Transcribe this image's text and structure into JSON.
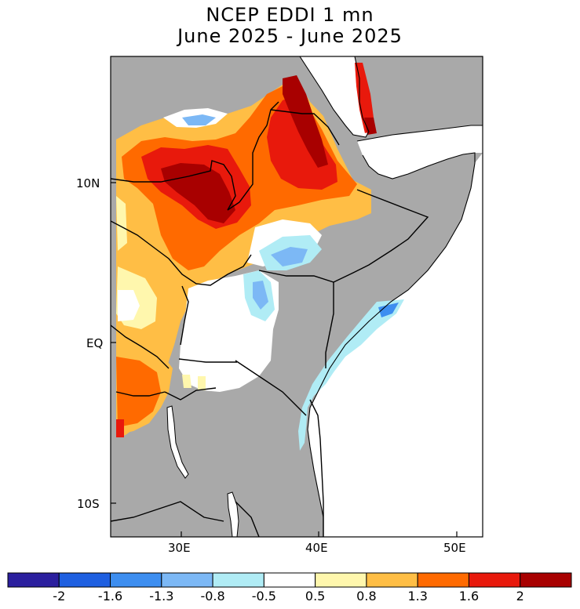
{
  "title": {
    "line1": "NCEP EDDI 1 mn",
    "line2": "June 2025 - June 2025"
  },
  "map": {
    "region": "East Africa",
    "lon_ticks": [
      "30E",
      "40E",
      "50E"
    ],
    "lat_ticks": [
      "10N",
      "EQ",
      "10S"
    ],
    "land_no_data_color": "#a9a9a9",
    "water_color": "#ffffff"
  },
  "colorbar": {
    "labels": [
      "-2",
      "-1.6",
      "-1.3",
      "-0.8",
      "-0.5",
      "0.5",
      "0.8",
      "1.3",
      "1.6",
      "2"
    ],
    "colors": [
      "#2b1f9e",
      "#1e5fe0",
      "#3d8ef0",
      "#7cb8f5",
      "#b0ecf5",
      "#ffffff",
      "#fff7ad",
      "#ffbe45",
      "#ff6a00",
      "#e8190c",
      "#a80000"
    ]
  }
}
